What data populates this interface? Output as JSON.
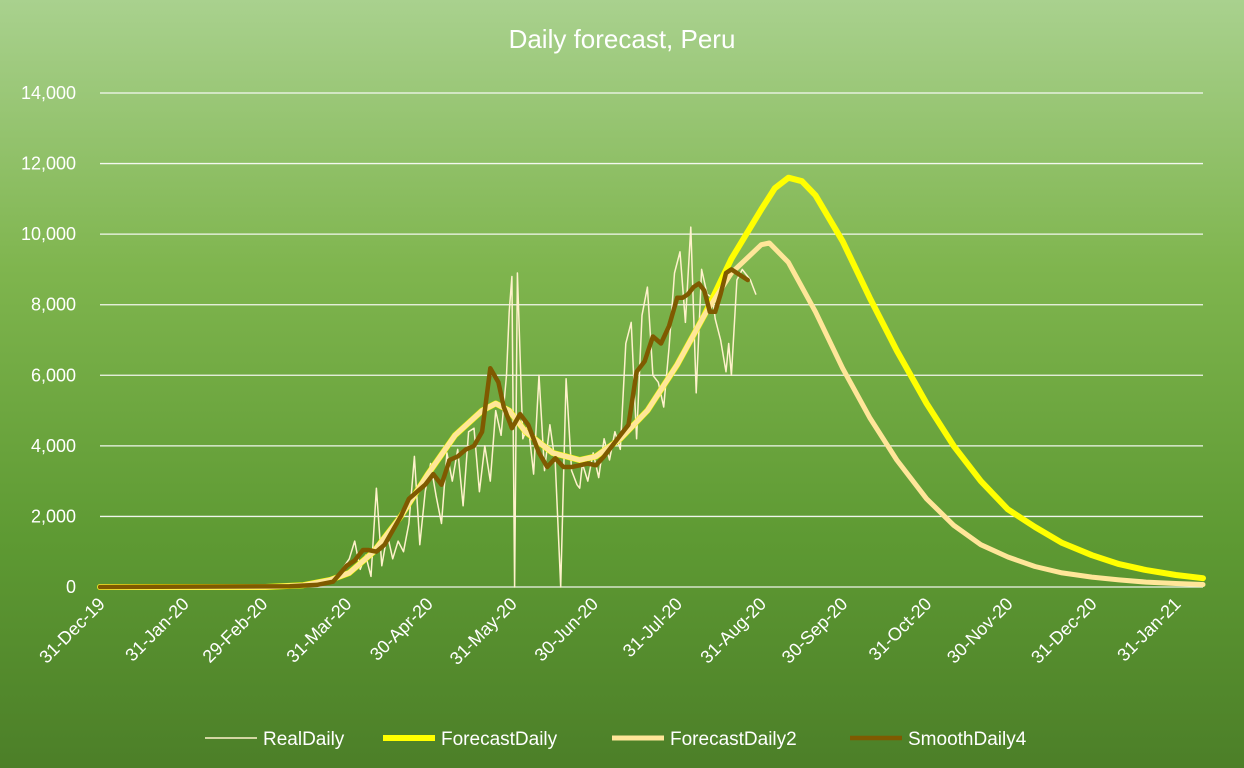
{
  "chart_data": {
    "type": "line",
    "title": "Daily forecast, Peru",
    "xlabel": "",
    "ylabel": "",
    "x_axis_type": "date",
    "xlim": [
      "2019-12-31",
      "2021-02-10"
    ],
    "ylim": [
      0,
      14000
    ],
    "yticks": [
      0,
      2000,
      4000,
      6000,
      8000,
      10000,
      12000,
      14000
    ],
    "ytick_labels": [
      "0",
      "2,000",
      "4,000",
      "6,000",
      "8,000",
      "10,000",
      "12,000",
      "14,000"
    ],
    "xticks": [
      "2019-12-31",
      "2020-01-31",
      "2020-02-29",
      "2020-03-31",
      "2020-04-30",
      "2020-05-31",
      "2020-06-30",
      "2020-07-31",
      "2020-08-31",
      "2020-09-30",
      "2020-10-31",
      "2020-11-30",
      "2020-12-31",
      "2021-01-31"
    ],
    "xtick_labels": [
      "31-Dec-19",
      "31-Jan-20",
      "29-Feb-20",
      "31-Mar-20",
      "30-Apr-20",
      "31-May-20",
      "30-Jun-20",
      "31-Jul-20",
      "31-Aug-20",
      "30-Sep-20",
      "31-Oct-20",
      "30-Nov-20",
      "31-Dec-20",
      "31-Jan-21"
    ],
    "grid": "horizontal",
    "legend_position": "bottom",
    "series": [
      {
        "name": "RealDaily",
        "color": "#fff2cc",
        "width": 1.5,
        "x": [
          "2020-03-06",
          "2020-03-15",
          "2020-03-22",
          "2020-03-28",
          "2020-04-01",
          "2020-04-03",
          "2020-04-05",
          "2020-04-07",
          "2020-04-09",
          "2020-04-11",
          "2020-04-13",
          "2020-04-15",
          "2020-04-17",
          "2020-04-19",
          "2020-04-21",
          "2020-04-23",
          "2020-04-25",
          "2020-04-27",
          "2020-04-29",
          "2020-05-01",
          "2020-05-03",
          "2020-05-05",
          "2020-05-07",
          "2020-05-09",
          "2020-05-11",
          "2020-05-13",
          "2020-05-15",
          "2020-05-17",
          "2020-05-19",
          "2020-05-21",
          "2020-05-23",
          "2020-05-25",
          "2020-05-27",
          "2020-05-29",
          "2020-05-30",
          "2020-05-31",
          "2020-06-01",
          "2020-06-02",
          "2020-06-04",
          "2020-06-06",
          "2020-06-08",
          "2020-06-10",
          "2020-06-12",
          "2020-06-14",
          "2020-06-16",
          "2020-06-18",
          "2020-06-20",
          "2020-06-22",
          "2020-06-24",
          "2020-06-25",
          "2020-06-26",
          "2020-06-28",
          "2020-06-30",
          "2020-07-02",
          "2020-07-04",
          "2020-07-06",
          "2020-07-08",
          "2020-07-10",
          "2020-07-12",
          "2020-07-14",
          "2020-07-16",
          "2020-07-18",
          "2020-07-20",
          "2020-07-22",
          "2020-07-24",
          "2020-07-26",
          "2020-07-28",
          "2020-07-30",
          "2020-08-01",
          "2020-08-03",
          "2020-08-05",
          "2020-08-07",
          "2020-08-09",
          "2020-08-11",
          "2020-08-13",
          "2020-08-14",
          "2020-08-16",
          "2020-08-18",
          "2020-08-19",
          "2020-08-20",
          "2020-08-22",
          "2020-08-24",
          "2020-08-26",
          "2020-08-27",
          "2020-08-28",
          "2020-08-29"
        ],
        "values": [
          0,
          30,
          100,
          350,
          800,
          1300,
          500,
          900,
          300,
          2800,
          600,
          1500,
          800,
          1300,
          1000,
          1800,
          3700,
          1200,
          2700,
          3500,
          2600,
          1800,
          3800,
          3000,
          3900,
          2300,
          4400,
          4500,
          2700,
          4000,
          3000,
          5000,
          4300,
          6000,
          7800,
          8800,
          0,
          8900,
          4200,
          4600,
          3200,
          6000,
          3300,
          4600,
          3500,
          0,
          5900,
          3300,
          2900,
          2800,
          3500,
          3000,
          3800,
          3100,
          4200,
          3600,
          4400,
          3900,
          6900,
          7500,
          4200,
          7700,
          8500,
          6000,
          5800,
          5100,
          6800,
          8900,
          9500,
          7500,
          10200,
          5500,
          9000,
          8300,
          8200,
          7600,
          7000,
          6100,
          6900,
          6000,
          8700,
          9000,
          8800,
          8700,
          8500,
          8300
        ]
      },
      {
        "name": "ForecastDaily",
        "color": "#ffff00",
        "width": 6,
        "x": [
          "2019-12-31",
          "2020-03-01",
          "2020-03-15",
          "2020-03-25",
          "2020-04-01",
          "2020-04-10",
          "2020-04-20",
          "2020-04-30",
          "2020-05-10",
          "2020-05-20",
          "2020-05-25",
          "2020-05-30",
          "2020-06-05",
          "2020-06-15",
          "2020-06-25",
          "2020-07-01",
          "2020-07-10",
          "2020-07-20",
          "2020-07-31",
          "2020-08-10",
          "2020-08-20",
          "2020-08-31",
          "2020-09-05",
          "2020-09-10",
          "2020-09-15",
          "2020-09-20",
          "2020-09-30",
          "2020-10-10",
          "2020-10-20",
          "2020-10-31",
          "2020-11-10",
          "2020-11-20",
          "2020-11-30",
          "2020-12-10",
          "2020-12-20",
          "2020-12-31",
          "2021-01-10",
          "2021-01-20",
          "2021-01-31",
          "2021-02-10"
        ],
        "values": [
          0,
          0,
          50,
          200,
          400,
          1000,
          2000,
          3200,
          4300,
          5000,
          5200,
          5000,
          4400,
          3800,
          3600,
          3700,
          4200,
          5000,
          6300,
          7700,
          9300,
          10700,
          11300,
          11600,
          11500,
          11100,
          9800,
          8200,
          6700,
          5200,
          4000,
          3000,
          2200,
          1700,
          1250,
          900,
          650,
          480,
          340,
          250
        ]
      },
      {
        "name": "ForecastDaily2",
        "color": "#ffe699",
        "width": 5,
        "x": [
          "2019-12-31",
          "2020-03-01",
          "2020-03-15",
          "2020-03-25",
          "2020-04-01",
          "2020-04-10",
          "2020-04-20",
          "2020-04-30",
          "2020-05-10",
          "2020-05-20",
          "2020-05-25",
          "2020-05-30",
          "2020-06-05",
          "2020-06-15",
          "2020-06-25",
          "2020-07-01",
          "2020-07-10",
          "2020-07-20",
          "2020-07-31",
          "2020-08-10",
          "2020-08-20",
          "2020-08-31",
          "2020-09-03",
          "2020-09-10",
          "2020-09-20",
          "2020-09-30",
          "2020-10-10",
          "2020-10-20",
          "2020-10-31",
          "2020-11-10",
          "2020-11-20",
          "2020-11-30",
          "2020-12-10",
          "2020-12-20",
          "2020-12-31",
          "2021-01-10",
          "2021-01-20",
          "2021-01-31",
          "2021-02-10"
        ],
        "values": [
          0,
          0,
          50,
          200,
          400,
          1000,
          2000,
          3200,
          4300,
          5000,
          5200,
          5000,
          4400,
          3800,
          3600,
          3700,
          4200,
          5000,
          6300,
          7700,
          8900,
          9700,
          9750,
          9200,
          7800,
          6200,
          4800,
          3600,
          2500,
          1750,
          1200,
          850,
          580,
          400,
          280,
          200,
          140,
          100,
          70
        ]
      },
      {
        "name": "SmoothDaily4",
        "color": "#7f5a00",
        "width": 4.5,
        "x": [
          "2019-12-31",
          "2020-03-10",
          "2020-03-20",
          "2020-03-26",
          "2020-03-31",
          "2020-04-03",
          "2020-04-06",
          "2020-04-08",
          "2020-04-11",
          "2020-04-14",
          "2020-04-17",
          "2020-04-20",
          "2020-04-23",
          "2020-04-26",
          "2020-04-29",
          "2020-05-02",
          "2020-05-05",
          "2020-05-08",
          "2020-05-11",
          "2020-05-14",
          "2020-05-17",
          "2020-05-20",
          "2020-05-23",
          "2020-05-26",
          "2020-05-28",
          "2020-05-31",
          "2020-06-03",
          "2020-06-06",
          "2020-06-08",
          "2020-06-10",
          "2020-06-13",
          "2020-06-16",
          "2020-06-19",
          "2020-06-22",
          "2020-06-25",
          "2020-06-28",
          "2020-07-01",
          "2020-07-04",
          "2020-07-07",
          "2020-07-10",
          "2020-07-13",
          "2020-07-16",
          "2020-07-19",
          "2020-07-22",
          "2020-07-25",
          "2020-07-28",
          "2020-07-31",
          "2020-08-02",
          "2020-08-04",
          "2020-08-06",
          "2020-08-08",
          "2020-08-10",
          "2020-08-12",
          "2020-08-14",
          "2020-08-16",
          "2020-08-18",
          "2020-08-20",
          "2020-08-22",
          "2020-08-24",
          "2020-08-26"
        ],
        "values": [
          0,
          20,
          60,
          150,
          600,
          750,
          1050,
          1050,
          1000,
          1200,
          1600,
          2000,
          2500,
          2700,
          2900,
          3200,
          2900,
          3600,
          3700,
          3900,
          4000,
          4400,
          6200,
          5800,
          5100,
          4500,
          4900,
          4600,
          4200,
          3800,
          3400,
          3650,
          3400,
          3400,
          3450,
          3500,
          3450,
          3700,
          4000,
          4300,
          4600,
          6100,
          6400,
          7100,
          6900,
          7400,
          8200,
          8200,
          8300,
          8500,
          8600,
          8400,
          7800,
          7800,
          8300,
          8900,
          9000,
          8900,
          8800,
          8700
        ]
      }
    ]
  }
}
